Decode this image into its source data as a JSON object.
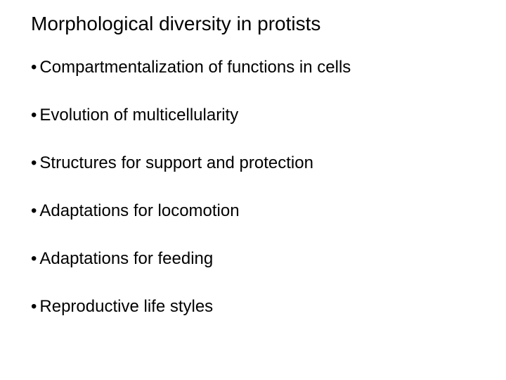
{
  "title": "Morphological diversity in protists",
  "title_fontsize": 28,
  "bullet_fontsize": 24,
  "bullet_char": "•",
  "text_color": "#000000",
  "background_color": "#ffffff",
  "font_family": "Arial",
  "bullets": [
    "Compartmentalization of functions in cells",
    "Evolution of multicellularity",
    "Structures for support and protection",
    "Adaptations for locomotion",
    "Adaptations for feeding",
    "Reproductive life styles"
  ]
}
